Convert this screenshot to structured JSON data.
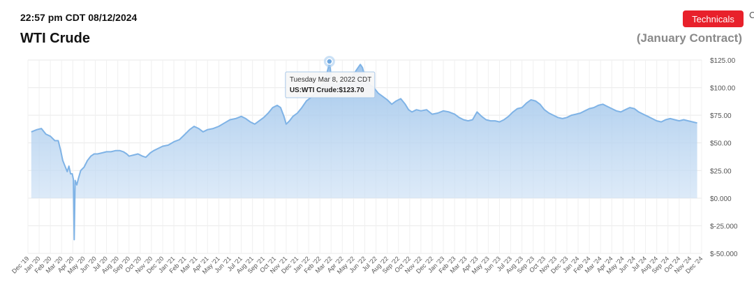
{
  "header": {
    "timestamp": "22:57 pm CDT 08/12/2024",
    "title": "WTI Crude",
    "contract": "(January Contract)",
    "technicals_label": "Technicals",
    "edge_glyph": "C"
  },
  "colors": {
    "accent": "#e8212b",
    "line": "#7fb3e6",
    "fill": "#b7d2ee"
  },
  "chart_data": {
    "type": "area",
    "y_ticks": [
      "$125.00",
      "$100.00",
      "$75.00",
      "$50.00",
      "$25.00",
      "$0.000",
      "$-25.000",
      "$-50.000"
    ],
    "ylim": [
      -50,
      125
    ],
    "x_ticks": [
      "Dec '19",
      "Jan '20",
      "Feb '20",
      "Mar '20",
      "Apr '20",
      "May '20",
      "Jun '20",
      "Jul '20",
      "Aug '20",
      "Sep '20",
      "Oct '20",
      "Nov '20",
      "Dec '20",
      "Jan '21",
      "Feb '21",
      "Mar '21",
      "Apr '21",
      "May '21",
      "Jun '21",
      "Jul '21",
      "Aug '21",
      "Sep '21",
      "Oct '21",
      "Nov '21",
      "Dec '21",
      "Jan '22",
      "Feb '22",
      "Mar '22",
      "Apr '22",
      "May '22",
      "Jun '22",
      "Jul '22",
      "Aug '22",
      "Sep '22",
      "Oct '22",
      "Nov '22",
      "Dec '22",
      "Jan '23",
      "Feb '23",
      "Mar '23",
      "Apr '23",
      "May '23",
      "Jun '23",
      "Jul '23",
      "Aug '23",
      "Sep '23",
      "Oct '23",
      "Nov '23",
      "Dec '23",
      "Jan '24",
      "Feb '24",
      "Mar '24",
      "Apr '24",
      "May '24",
      "Jun '24",
      "Jul '24",
      "Aug '24",
      "Sep '24",
      "Oct '24",
      "Nov '24",
      "Dec '24"
    ],
    "series": [
      {
        "points": [
          [
            0.3,
            60
          ],
          [
            0.8,
            62
          ],
          [
            1.2,
            63
          ],
          [
            1.6,
            58
          ],
          [
            2.0,
            56
          ],
          [
            2.4,
            52
          ],
          [
            2.7,
            52
          ],
          [
            2.9,
            44
          ],
          [
            3.1,
            34
          ],
          [
            3.3,
            29
          ],
          [
            3.5,
            24
          ],
          [
            3.65,
            29
          ],
          [
            3.8,
            22
          ],
          [
            3.95,
            22
          ],
          [
            4.05,
            17
          ],
          [
            4.12,
            -37.6
          ],
          [
            4.2,
            16
          ],
          [
            4.35,
            12
          ],
          [
            4.5,
            18
          ],
          [
            4.7,
            25
          ],
          [
            5.0,
            28
          ],
          [
            5.3,
            34
          ],
          [
            5.6,
            38
          ],
          [
            5.9,
            40
          ],
          [
            6.2,
            40
          ],
          [
            6.6,
            41
          ],
          [
            7.0,
            42
          ],
          [
            7.4,
            42
          ],
          [
            7.8,
            43
          ],
          [
            8.2,
            43
          ],
          [
            8.5,
            42
          ],
          [
            8.8,
            40
          ],
          [
            9.0,
            38
          ],
          [
            9.4,
            39
          ],
          [
            9.8,
            40
          ],
          [
            10.2,
            38
          ],
          [
            10.5,
            37
          ],
          [
            10.9,
            41
          ],
          [
            11.2,
            43
          ],
          [
            11.6,
            45
          ],
          [
            12.0,
            47
          ],
          [
            12.5,
            48
          ],
          [
            13.0,
            51
          ],
          [
            13.5,
            53
          ],
          [
            14.0,
            58
          ],
          [
            14.4,
            62
          ],
          [
            14.8,
            65
          ],
          [
            15.2,
            63
          ],
          [
            15.6,
            60
          ],
          [
            16.0,
            62
          ],
          [
            16.5,
            63
          ],
          [
            17.0,
            65
          ],
          [
            17.5,
            68
          ],
          [
            18.0,
            71
          ],
          [
            18.5,
            72
          ],
          [
            19.0,
            74
          ],
          [
            19.4,
            72
          ],
          [
            19.8,
            69
          ],
          [
            20.2,
            67
          ],
          [
            20.6,
            70
          ],
          [
            21.0,
            73
          ],
          [
            21.4,
            77
          ],
          [
            21.8,
            82
          ],
          [
            22.2,
            84
          ],
          [
            22.5,
            82
          ],
          [
            22.8,
            74
          ],
          [
            23.0,
            67
          ],
          [
            23.3,
            70
          ],
          [
            23.6,
            74
          ],
          [
            24.0,
            77
          ],
          [
            24.4,
            82
          ],
          [
            24.8,
            88
          ],
          [
            25.2,
            91
          ],
          [
            25.6,
            95
          ],
          [
            26.0,
            100
          ],
          [
            26.4,
            105
          ],
          [
            26.6,
            112
          ],
          [
            26.75,
            118
          ],
          [
            26.85,
            123.7
          ],
          [
            27.0,
            110
          ],
          [
            27.3,
            102
          ],
          [
            27.6,
            102
          ],
          [
            27.9,
            106
          ],
          [
            28.2,
            103
          ],
          [
            28.6,
            108
          ],
          [
            29.0,
            112
          ],
          [
            29.4,
            118
          ],
          [
            29.6,
            121
          ],
          [
            29.8,
            118
          ],
          [
            30.0,
            110
          ],
          [
            30.4,
            103
          ],
          [
            30.8,
            100
          ],
          [
            31.2,
            95
          ],
          [
            31.6,
            92
          ],
          [
            32.0,
            89
          ],
          [
            32.4,
            85
          ],
          [
            32.8,
            88
          ],
          [
            33.2,
            90
          ],
          [
            33.6,
            85
          ],
          [
            33.9,
            80
          ],
          [
            34.2,
            78
          ],
          [
            34.6,
            80
          ],
          [
            35.0,
            79
          ],
          [
            35.5,
            80
          ],
          [
            36.0,
            76
          ],
          [
            36.5,
            77
          ],
          [
            37.0,
            79
          ],
          [
            37.5,
            78
          ],
          [
            38.0,
            76
          ],
          [
            38.4,
            73
          ],
          [
            38.8,
            71
          ],
          [
            39.2,
            70
          ],
          [
            39.6,
            71
          ],
          [
            40.0,
            78
          ],
          [
            40.4,
            74
          ],
          [
            40.8,
            71
          ],
          [
            41.2,
            70
          ],
          [
            41.6,
            70
          ],
          [
            42.0,
            69
          ],
          [
            42.4,
            71
          ],
          [
            42.8,
            74
          ],
          [
            43.2,
            78
          ],
          [
            43.6,
            81
          ],
          [
            44.0,
            82
          ],
          [
            44.4,
            86
          ],
          [
            44.8,
            89
          ],
          [
            45.2,
            88
          ],
          [
            45.6,
            85
          ],
          [
            46.0,
            80
          ],
          [
            46.4,
            77
          ],
          [
            46.8,
            75
          ],
          [
            47.2,
            73
          ],
          [
            47.6,
            72
          ],
          [
            48.0,
            73
          ],
          [
            48.4,
            75
          ],
          [
            48.8,
            76
          ],
          [
            49.2,
            77
          ],
          [
            49.6,
            79
          ],
          [
            50.0,
            81
          ],
          [
            50.4,
            82
          ],
          [
            50.8,
            84
          ],
          [
            51.2,
            85
          ],
          [
            51.6,
            83
          ],
          [
            52.0,
            81
          ],
          [
            52.4,
            79
          ],
          [
            52.8,
            78
          ],
          [
            53.2,
            80
          ],
          [
            53.6,
            82
          ],
          [
            54.0,
            81
          ],
          [
            54.4,
            78
          ],
          [
            54.8,
            76
          ],
          [
            55.2,
            74
          ],
          [
            55.6,
            72
          ],
          [
            56.0,
            70
          ],
          [
            56.4,
            69
          ],
          [
            56.8,
            71
          ],
          [
            57.2,
            72
          ],
          [
            57.6,
            71
          ],
          [
            58.0,
            70
          ],
          [
            58.4,
            71
          ],
          [
            58.8,
            70
          ],
          [
            59.2,
            69
          ],
          [
            59.6,
            68
          ]
        ]
      }
    ],
    "tooltip": {
      "date": "Tuesday Mar 8, 2022 CDT",
      "label": "US:WTI Crude:$123.70",
      "x": 26.85,
      "y": 123.7
    }
  }
}
